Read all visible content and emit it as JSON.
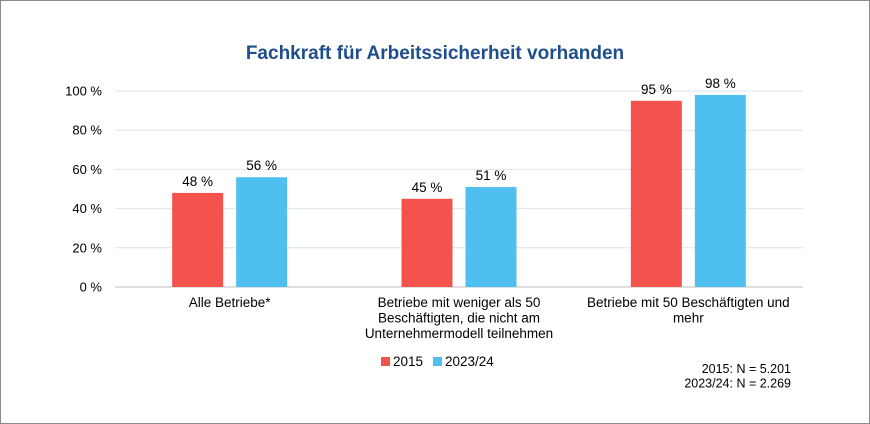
{
  "chart_data": {
    "type": "bar",
    "title": "Fachkraft für Arbeitssicherheit vorhanden",
    "categories": [
      [
        "Alle Betriebe*"
      ],
      [
        "Betriebe mit weniger als 50",
        "Beschäftigten, die nicht am",
        "Unternehmermodell teilnehmen"
      ],
      [
        "Betriebe mit 50 Beschäftigten und",
        "mehr"
      ]
    ],
    "series": [
      {
        "name": "2015",
        "color": "#f4524d",
        "values": [
          48,
          45,
          95
        ],
        "labels": [
          "48 %",
          "45 %",
          "95 %"
        ]
      },
      {
        "name": "2023/24",
        "color": "#4fbfef",
        "values": [
          56,
          51,
          98
        ],
        "labels": [
          "56 %",
          "51 %",
          "98 %"
        ]
      }
    ],
    "ylim": [
      0,
      100
    ],
    "yticks": [
      0,
      20,
      40,
      60,
      80,
      100
    ],
    "ytick_labels": [
      "0 %",
      "20 %",
      "40 %",
      "60 %",
      "80 %",
      "100 %"
    ],
    "grid": true,
    "legend_position": "bottom-left",
    "notes": [
      "2015: N = 5.201",
      "2023/24: N = 2.269"
    ]
  }
}
